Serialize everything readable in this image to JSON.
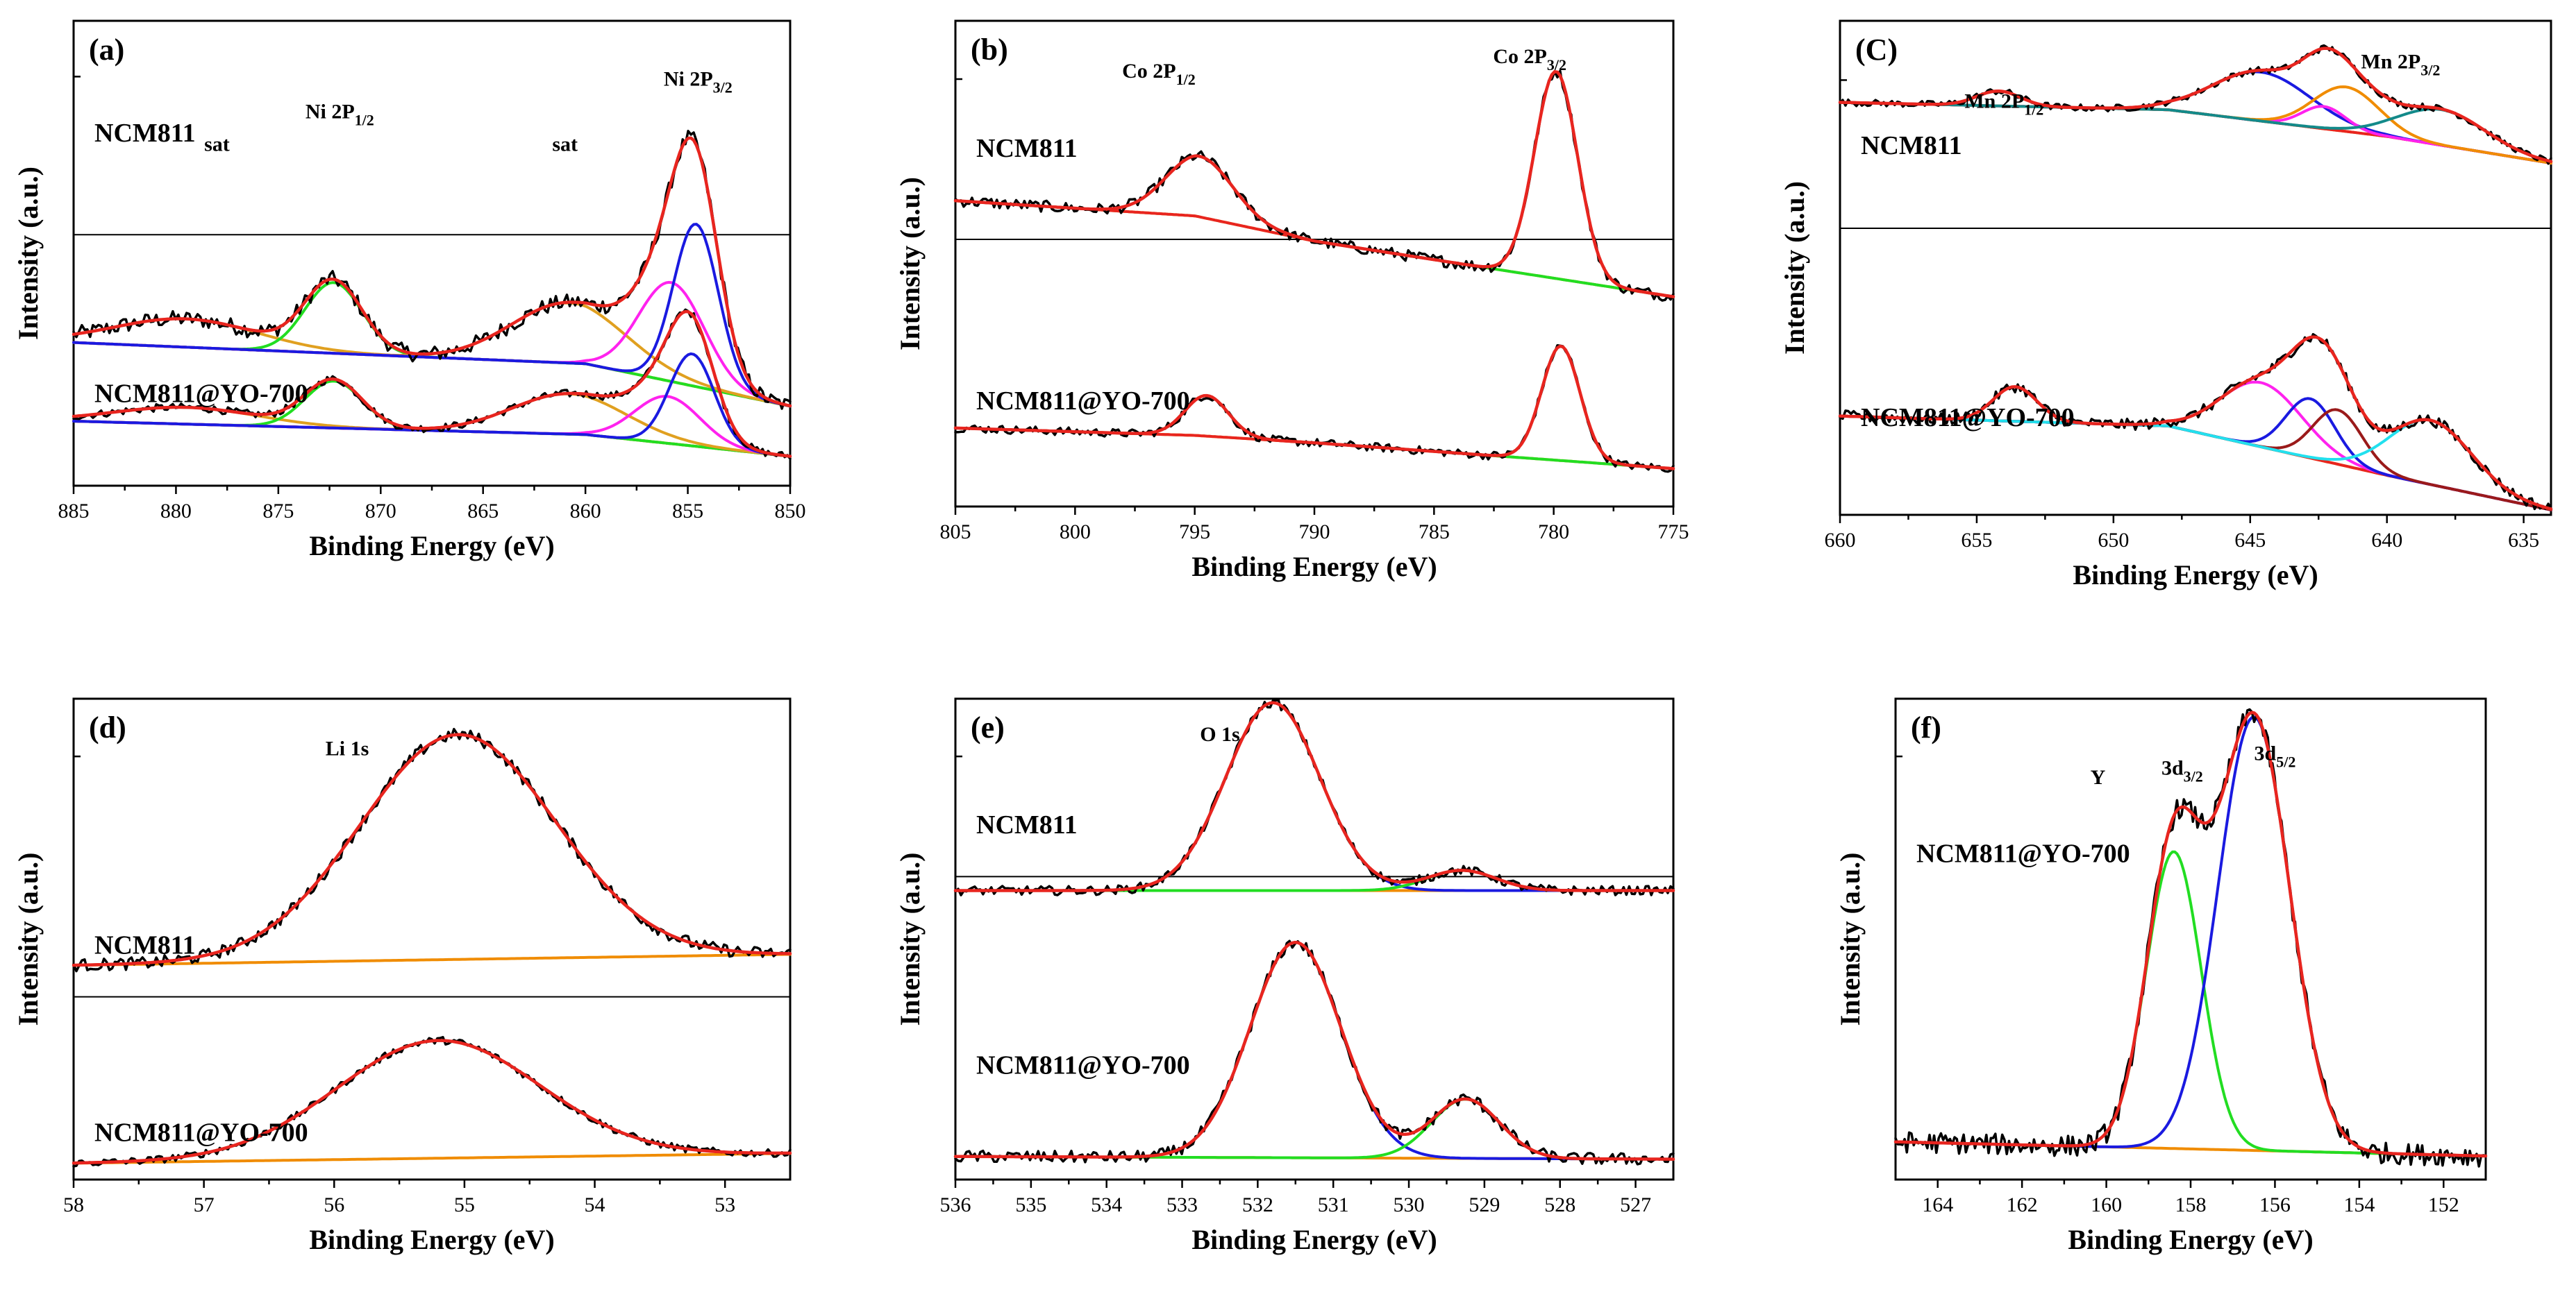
{
  "colors": {
    "raw": "#000000",
    "envelope": "#e8251f",
    "background": "#f08c00",
    "green": "#22dd22",
    "blue": "#1a1ae0",
    "magenta": "#ff22ee",
    "orange_gold": "#e0a020",
    "olive": "#9a8a00",
    "teal": "#138a8a",
    "cyan": "#22e0ee",
    "brown": "#9a1a1a"
  },
  "chart_data": [
    {
      "id": "a",
      "type": "line",
      "panel_label": "(a)",
      "element": "Ni",
      "xlabel": "Binding Energy (eV)",
      "ylabel": "Intensity (a.u.)",
      "xlim": [
        885,
        850
      ],
      "xticks": [
        885,
        880,
        875,
        870,
        865,
        860,
        855,
        850
      ],
      "annotations": [
        {
          "text": "sat",
          "x": 878
        },
        {
          "text": "Ni 2P",
          "sub": "1/2",
          "x": 872
        },
        {
          "text": "sat",
          "x": 861
        },
        {
          "text": "Ni 2P",
          "sub": "3/2",
          "x": 854.5
        }
      ],
      "samples": [
        {
          "name": "NCM811",
          "baseline": [
            [
              885,
              0.3
            ],
            [
              860,
              0.24
            ],
            [
              850,
              0.12
            ]
          ],
          "components": [
            {
              "color": "orange_gold",
              "center": 879.5,
              "height": 0.08,
              "width": 3.5
            },
            {
              "color": "green",
              "center": 872.3,
              "height": 0.2,
              "width": 1.4
            },
            {
              "color": "orange_gold",
              "center": 860.8,
              "height": 0.17,
              "width": 2.8
            },
            {
              "color": "magenta",
              "center": 855.8,
              "height": 0.28,
              "width": 1.6
            },
            {
              "color": "blue",
              "center": 854.6,
              "height": 0.46,
              "width": 1.1
            }
          ]
        },
        {
          "name": "NCM811@YO-700",
          "baseline": [
            [
              885,
              0.33
            ],
            [
              860,
              0.25
            ],
            [
              850,
              0.12
            ]
          ],
          "components": [
            {
              "color": "orange_gold",
              "center": 879.5,
              "height": 0.1,
              "width": 3.5
            },
            {
              "color": "green",
              "center": 872.3,
              "height": 0.28,
              "width": 1.4
            },
            {
              "color": "orange_gold",
              "center": 860.8,
              "height": 0.24,
              "width": 2.8
            },
            {
              "color": "magenta",
              "center": 856.0,
              "height": 0.28,
              "width": 1.6
            },
            {
              "color": "blue",
              "center": 854.8,
              "height": 0.55,
              "width": 1.1
            }
          ]
        }
      ]
    },
    {
      "id": "b",
      "type": "line",
      "panel_label": "(b)",
      "element": "Co",
      "xlabel": "Binding Energy (eV)",
      "ylabel": "Intensity (a.u.)",
      "xlim": [
        805,
        775
      ],
      "xticks": [
        805,
        800,
        795,
        790,
        785,
        780,
        775
      ],
      "annotations": [
        {
          "text": "Co 2P",
          "sub": "1/2",
          "x": 796.5
        },
        {
          "text": "Co 2P",
          "sub": "3/2",
          "x": 781
        }
      ],
      "samples": [
        {
          "name": "NCM811",
          "baseline": [
            [
              805,
              0.48
            ],
            [
              795,
              0.42
            ],
            [
              790,
              0.32
            ],
            [
              775,
              0.1
            ]
          ],
          "components": [
            {
              "color": "green",
              "center": 794.8,
              "height": 0.24,
              "width": 1.4
            },
            {
              "color": "envelope",
              "center": 779.9,
              "height": 0.82,
              "width": 0.9
            }
          ]
        },
        {
          "name": "NCM811@YO-700",
          "baseline": [
            [
              805,
              0.32
            ],
            [
              795,
              0.28
            ],
            [
              790,
              0.24
            ],
            [
              775,
              0.1
            ]
          ],
          "components": [
            {
              "color": "green",
              "center": 794.5,
              "height": 0.22,
              "width": 0.9
            },
            {
              "color": "envelope",
              "center": 779.7,
              "height": 0.62,
              "width": 0.8
            }
          ]
        }
      ]
    },
    {
      "id": "c",
      "type": "line",
      "panel_label": "(C)",
      "element": "Mn",
      "xlabel": "Binding Energy (eV)",
      "ylabel": "Intensity (a.u.)",
      "xlim": [
        660,
        634
      ],
      "xticks": [
        660,
        655,
        650,
        645,
        640,
        635
      ],
      "annotations": [
        {
          "text": "Mn 2P",
          "sub": "1/2",
          "x": 654
        },
        {
          "text": "Mn 2P",
          "sub": "3/2",
          "x": 639.5
        }
      ],
      "samples": [
        {
          "name": "NCM811",
          "baseline": [
            [
              660,
              0.45
            ],
            [
              648,
              0.4
            ],
            [
              640,
              0.22
            ],
            [
              634,
              0.04
            ]
          ],
          "components": [
            {
              "color": "envelope",
              "center": 654.2,
              "height": 0.1,
              "width": 0.8
            },
            {
              "color": "blue",
              "center": 644.6,
              "height": 0.33,
              "width": 1.8
            },
            {
              "color": "magenta",
              "center": 642.3,
              "height": 0.15,
              "width": 0.8
            },
            {
              "color": "background",
              "center": 641.5,
              "height": 0.3,
              "width": 1.2
            },
            {
              "color": "teal",
              "center": 638.0,
              "height": 0.24,
              "width": 1.6
            }
          ]
        },
        {
          "name": "NCM811@YO-700",
          "baseline": [
            [
              660,
              0.4
            ],
            [
              648,
              0.36
            ],
            [
              640,
              0.16
            ],
            [
              634,
              0.02
            ]
          ],
          "components": [
            {
              "color": "envelope",
              "center": 653.6,
              "height": 0.14,
              "width": 0.8
            },
            {
              "color": "magenta",
              "center": 644.6,
              "height": 0.26,
              "width": 1.5
            },
            {
              "color": "blue",
              "center": 642.8,
              "height": 0.24,
              "width": 0.9
            },
            {
              "color": "brown",
              "center": 641.8,
              "height": 0.22,
              "width": 0.9
            },
            {
              "color": "cyan",
              "center": 638.4,
              "height": 0.26,
              "width": 1.5
            }
          ]
        }
      ]
    },
    {
      "id": "d",
      "type": "line",
      "panel_label": "(d)",
      "element": "Li",
      "xlabel": "Binding Energy (eV)",
      "ylabel": "Intensity (a.u.)",
      "xlim": [
        58,
        52.5
      ],
      "xticks": [
        58,
        57,
        56,
        55,
        54,
        53
      ],
      "annotations": [
        {
          "text": "Li  1s",
          "x": 55.9
        }
      ],
      "samples": [
        {
          "name": "NCM811",
          "baseline": [
            [
              58,
              0.08
            ],
            [
              52.5,
              0.12
            ]
          ],
          "components": [
            {
              "color": "envelope",
              "center": 55.05,
              "height": 0.82,
              "width": 0.75
            }
          ]
        },
        {
          "name": "NCM811@YO-700",
          "baseline": [
            [
              58,
              0.1
            ],
            [
              52.5,
              0.16
            ]
          ],
          "components": [
            {
              "color": "envelope",
              "center": 55.2,
              "height": 0.72,
              "width": 0.78
            }
          ]
        }
      ]
    },
    {
      "id": "e",
      "type": "line",
      "panel_label": "(e)",
      "element": "O",
      "xlabel": "Binding Energy (eV)",
      "ylabel": "Intensity (a.u.)",
      "xlim": [
        536,
        526.5
      ],
      "xticks": [
        536,
        535,
        534,
        533,
        532,
        531,
        530,
        529,
        528,
        527
      ],
      "annotations": [
        {
          "text": "O  1s",
          "x": 532.5
        }
      ],
      "samples": [
        {
          "name": "NCM811",
          "baseline": [
            [
              536,
              0.05
            ],
            [
              526.5,
              0.05
            ]
          ],
          "components": [
            {
              "color": "blue",
              "center": 531.8,
              "height": 0.93,
              "width": 0.62
            },
            {
              "color": "green",
              "center": 529.3,
              "height": 0.1,
              "width": 0.45
            }
          ]
        },
        {
          "name": "NCM811@YO-700",
          "baseline": [
            [
              536,
              0.05
            ],
            [
              526.5,
              0.04
            ]
          ],
          "components": [
            {
              "color": "blue",
              "center": 531.5,
              "height": 0.8,
              "width": 0.6
            },
            {
              "color": "green",
              "center": 529.25,
              "height": 0.22,
              "width": 0.45
            }
          ]
        }
      ]
    },
    {
      "id": "f",
      "type": "line",
      "panel_label": "(f)",
      "element": "Y",
      "xlabel": "Binding Energy (eV)",
      "ylabel": "Intensity (a.u.)",
      "xlim": [
        165,
        151
      ],
      "xticks": [
        164,
        162,
        160,
        158,
        156,
        154,
        152
      ],
      "annotations": [
        {
          "text": "Y",
          "x": 160.2
        },
        {
          "text": "3d",
          "sub": "3/2",
          "x": 158.2
        },
        {
          "text": "3d",
          "sub": "5/2",
          "x": 156.0
        }
      ],
      "samples": [
        {
          "name": "NCM811@YO-700",
          "baseline": [
            [
              165,
              0.08
            ],
            [
              151,
              0.05
            ]
          ],
          "components": [
            {
              "color": "green",
              "center": 158.4,
              "height": 0.63,
              "width": 0.65
            },
            {
              "color": "blue",
              "center": 156.5,
              "height": 0.92,
              "width": 0.85
            }
          ]
        }
      ]
    }
  ]
}
